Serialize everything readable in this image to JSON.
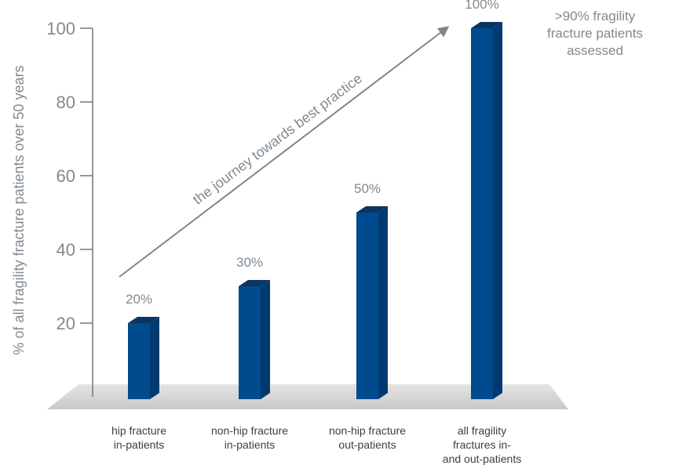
{
  "chart_data": {
    "type": "bar",
    "ylabel": "% of all fragility fracture patients over 50 years",
    "ylim": [
      0,
      100
    ],
    "yticks": [
      20,
      40,
      60,
      80,
      100
    ],
    "categories": [
      [
        "hip fracture",
        "in-patients"
      ],
      [
        "non-hip fracture",
        "in-patients"
      ],
      [
        "non-hip fracture",
        "out-patients"
      ],
      [
        "all fragility",
        "fractures in-",
        "and out-patients"
      ]
    ],
    "values": [
      20,
      30,
      50,
      100
    ],
    "data_labels": [
      "20%",
      "30%",
      "50%",
      "100%"
    ],
    "arrow_label": "the journey towards best practice",
    "annotation": [
      ">90% fragility",
      "fracture patients",
      "assessed"
    ],
    "colors": {
      "bar_front": "#004b8d",
      "bar_side": "#003a70",
      "bar_top": "#0c3463",
      "axis": "#6f7880",
      "text": "#808a92",
      "floor": "#dcdcdc"
    }
  }
}
